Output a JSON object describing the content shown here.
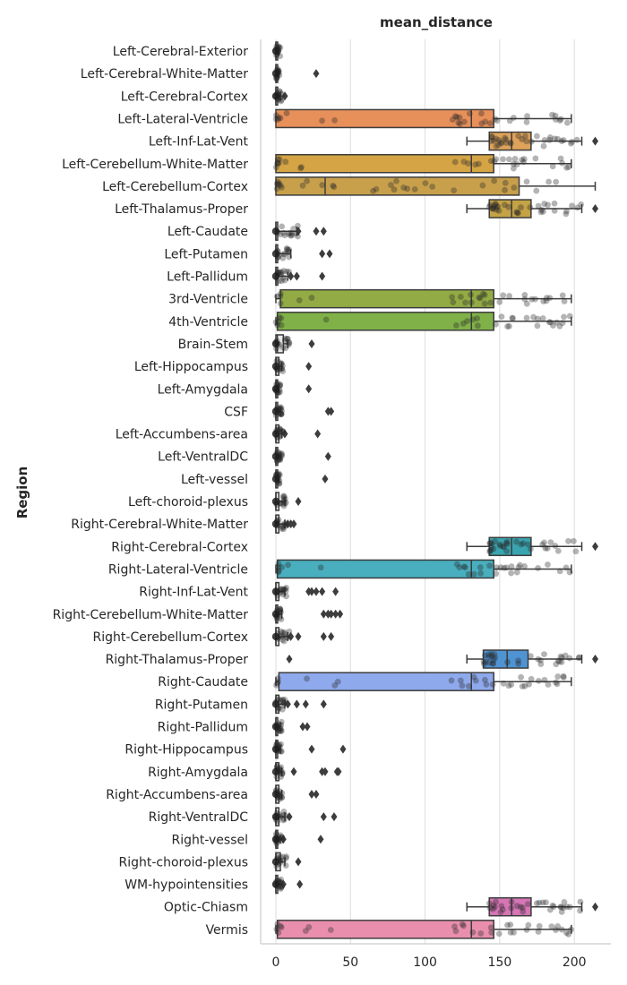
{
  "chart_data": {
    "type": "box",
    "orientation": "horizontal",
    "title": "mean_distance",
    "xlabel": "",
    "ylabel": "Region",
    "xlim": [
      -10,
      225
    ],
    "xticks": [
      0,
      50,
      100,
      150,
      200
    ],
    "grid": "vertical",
    "overlay": "strip",
    "categories": [
      "Left-Cerebral-Exterior",
      "Left-Cerebral-White-Matter",
      "Left-Cerebral-Cortex",
      "Left-Lateral-Ventricle",
      "Left-Inf-Lat-Vent",
      "Left-Cerebellum-White-Matter",
      "Left-Cerebellum-Cortex",
      "Left-Thalamus-Proper",
      "Left-Caudate",
      "Left-Putamen",
      "Left-Pallidum",
      "3rd-Ventricle",
      "4th-Ventricle",
      "Brain-Stem",
      "Left-Hippocampus",
      "Left-Amygdala",
      "CSF",
      "Left-Accumbens-area",
      "Left-VentralDC",
      "Left-vessel",
      "Left-choroid-plexus",
      "Right-Cerebral-White-Matter",
      "Right-Cerebral-Cortex",
      "Right-Lateral-Ventricle",
      "Right-Inf-Lat-Vent",
      "Right-Cerebellum-White-Matter",
      "Right-Cerebellum-Cortex",
      "Right-Thalamus-Proper",
      "Right-Caudate",
      "Right-Putamen",
      "Right-Pallidum",
      "Right-Hippocampus",
      "Right-Amygdala",
      "Right-Accumbens-area",
      "Right-VentralDC",
      "Right-vessel",
      "Right-choroid-plexus",
      "WM-hypointensities",
      "Optic-Chiasm",
      "Vermis"
    ],
    "boxes": [
      {
        "q1": 0,
        "median": 0,
        "q3": 1,
        "whisker_low": 0,
        "whisker_high": 2,
        "fliers": [],
        "color": "#e8e8e8"
      },
      {
        "q1": 0,
        "median": 0,
        "q3": 1,
        "whisker_low": 0,
        "whisker_high": 2,
        "fliers": [
          27
        ],
        "color": "#e8e8e8"
      },
      {
        "q1": 0,
        "median": 0,
        "q3": 1,
        "whisker_low": 0,
        "whisker_high": 3,
        "fliers": [
          6
        ],
        "color": "#e8e8e8"
      },
      {
        "q1": 0,
        "median": 131,
        "q3": 146,
        "whisker_low": 0,
        "whisker_high": 198,
        "fliers": [],
        "color": "#e8905a"
      },
      {
        "q1": 143,
        "median": 158,
        "q3": 171,
        "whisker_low": 128,
        "whisker_high": 205,
        "fliers": [
          214
        ],
        "color": "#dea35a"
      },
      {
        "q1": 0,
        "median": 131,
        "q3": 146,
        "whisker_low": 0,
        "whisker_high": 198,
        "fliers": [],
        "color": "#d4a445"
      },
      {
        "q1": 0,
        "median": 33,
        "q3": 163,
        "whisker_low": 0,
        "whisker_high": 214,
        "fliers": [],
        "color": "#c8a04c"
      },
      {
        "q1": 143,
        "median": 158,
        "q3": 171,
        "whisker_low": 128,
        "whisker_high": 205,
        "fliers": [
          214
        ],
        "color": "#c4a246"
      },
      {
        "q1": 0,
        "median": 0,
        "q3": 1,
        "whisker_low": 0,
        "whisker_high": 14,
        "fliers": [
          15,
          27,
          32
        ],
        "color": "#e8e8e8"
      },
      {
        "q1": 0,
        "median": 0,
        "q3": 1,
        "whisker_low": 0,
        "whisker_high": 10,
        "fliers": [
          31,
          36
        ],
        "color": "#e8e8e8"
      },
      {
        "q1": 0,
        "median": 0,
        "q3": 1,
        "whisker_low": 0,
        "whisker_high": 8,
        "fliers": [
          10,
          14,
          31
        ],
        "color": "#e8e8e8"
      },
      {
        "q1": 3,
        "median": 131,
        "q3": 146,
        "whisker_low": 0,
        "whisker_high": 198,
        "fliers": [],
        "color": "#93ab44"
      },
      {
        "q1": 1,
        "median": 131,
        "q3": 146,
        "whisker_low": 0,
        "whisker_high": 198,
        "fliers": [],
        "color": "#80b149"
      },
      {
        "q1": 0,
        "median": 1,
        "q3": 5,
        "whisker_low": 0,
        "whisker_high": 8,
        "fliers": [
          24
        ],
        "color": "#e8e8e8"
      },
      {
        "q1": 0,
        "median": 0,
        "q3": 2,
        "whisker_low": 0,
        "whisker_high": 4,
        "fliers": [
          22
        ],
        "color": "#e8e8e8"
      },
      {
        "q1": 0,
        "median": 0,
        "q3": 1,
        "whisker_low": 0,
        "whisker_high": 2,
        "fliers": [
          22
        ],
        "color": "#e8e8e8"
      },
      {
        "q1": 0,
        "median": 0,
        "q3": 1,
        "whisker_low": 0,
        "whisker_high": 3,
        "fliers": [
          35,
          37
        ],
        "color": "#e8e8e8"
      },
      {
        "q1": 0,
        "median": 0,
        "q3": 2,
        "whisker_low": 0,
        "whisker_high": 4,
        "fliers": [
          6,
          28
        ],
        "color": "#e8e8e8"
      },
      {
        "q1": 0,
        "median": 0,
        "q3": 1,
        "whisker_low": 0,
        "whisker_high": 3,
        "fliers": [
          35
        ],
        "color": "#e8e8e8"
      },
      {
        "q1": 0,
        "median": 0,
        "q3": 1,
        "whisker_low": 0,
        "whisker_high": 2,
        "fliers": [
          33
        ],
        "color": "#e8e8e8"
      },
      {
        "q1": 0,
        "median": 0,
        "q3": 2,
        "whisker_low": 0,
        "whisker_high": 6,
        "fliers": [
          15
        ],
        "color": "#e8e8e8"
      },
      {
        "q1": 0,
        "median": 0,
        "q3": 2,
        "whisker_low": 0,
        "whisker_high": 6,
        "fliers": [
          8,
          10,
          12
        ],
        "color": "#e8e8e8"
      },
      {
        "q1": 143,
        "median": 158,
        "q3": 171,
        "whisker_low": 128,
        "whisker_high": 205,
        "fliers": [
          214
        ],
        "color": "#3aa5b0"
      },
      {
        "q1": 1,
        "median": 131,
        "q3": 146,
        "whisker_low": 0,
        "whisker_high": 198,
        "fliers": [],
        "color": "#49aebe"
      },
      {
        "q1": 0,
        "median": 0,
        "q3": 2,
        "whisker_low": 0,
        "whisker_high": 6,
        "fliers": [
          22,
          24,
          27,
          31,
          40
        ],
        "color": "#e8e8e8"
      },
      {
        "q1": 0,
        "median": 0,
        "q3": 1,
        "whisker_low": 0,
        "whisker_high": 4,
        "fliers": [
          32,
          35,
          37,
          40,
          43
        ],
        "color": "#e8e8e8"
      },
      {
        "q1": 0,
        "median": 0,
        "q3": 2,
        "whisker_low": 0,
        "whisker_high": 8,
        "fliers": [
          10,
          15,
          32,
          37
        ],
        "color": "#e8e8e8"
      },
      {
        "q1": 139,
        "median": 155,
        "q3": 169,
        "whisker_low": 128,
        "whisker_high": 205,
        "fliers": [
          9,
          214
        ],
        "color": "#4f93d2"
      },
      {
        "q1": 2,
        "median": 131,
        "q3": 146,
        "whisker_low": 0,
        "whisker_high": 198,
        "fliers": [],
        "color": "#8ea9ec"
      },
      {
        "q1": 0,
        "median": 0,
        "q3": 2,
        "whisker_low": 0,
        "whisker_high": 6,
        "fliers": [
          8,
          14,
          20,
          32
        ],
        "color": "#e8e8e8"
      },
      {
        "q1": 0,
        "median": 0,
        "q3": 1,
        "whisker_low": 0,
        "whisker_high": 3,
        "fliers": [
          18,
          21
        ],
        "color": "#e8e8e8"
      },
      {
        "q1": 0,
        "median": 0,
        "q3": 1,
        "whisker_low": 0,
        "whisker_high": 3,
        "fliers": [
          24,
          45
        ],
        "color": "#e8e8e8"
      },
      {
        "q1": 0,
        "median": 0,
        "q3": 2,
        "whisker_low": 0,
        "whisker_high": 4,
        "fliers": [
          12,
          31,
          33,
          41,
          42
        ],
        "color": "#e8e8e8"
      },
      {
        "q1": 0,
        "median": 0,
        "q3": 2,
        "whisker_low": 0,
        "whisker_high": 4,
        "fliers": [
          24,
          27
        ],
        "color": "#e8e8e8"
      },
      {
        "q1": 0,
        "median": 0,
        "q3": 2,
        "whisker_low": 0,
        "whisker_high": 6,
        "fliers": [
          9,
          32,
          39
        ],
        "color": "#e8e8e8"
      },
      {
        "q1": 0,
        "median": 0,
        "q3": 1,
        "whisker_low": 0,
        "whisker_high": 3,
        "fliers": [
          5,
          30
        ],
        "color": "#e8e8e8"
      },
      {
        "q1": 0,
        "median": 0,
        "q3": 3,
        "whisker_low": 0,
        "whisker_high": 6,
        "fliers": [
          15
        ],
        "color": "#e8e8e8"
      },
      {
        "q1": 0,
        "median": 0,
        "q3": 1,
        "whisker_low": 0,
        "whisker_high": 3,
        "fliers": [
          5,
          16
        ],
        "color": "#e8e8e8"
      },
      {
        "q1": 143,
        "median": 158,
        "q3": 171,
        "whisker_low": 128,
        "whisker_high": 205,
        "fliers": [
          214
        ],
        "color": "#d676b6"
      },
      {
        "q1": 1,
        "median": 131,
        "q3": 146,
        "whisker_low": 0,
        "whisker_high": 198,
        "fliers": [],
        "color": "#e98fad"
      }
    ]
  }
}
